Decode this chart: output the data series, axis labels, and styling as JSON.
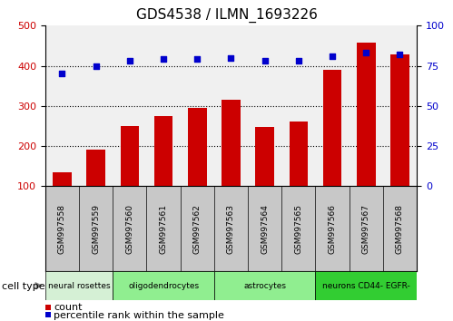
{
  "title": "GDS4538 / ILMN_1693226",
  "samples": [
    "GSM997558",
    "GSM997559",
    "GSM997560",
    "GSM997561",
    "GSM997562",
    "GSM997563",
    "GSM997564",
    "GSM997565",
    "GSM997566",
    "GSM997567",
    "GSM997568"
  ],
  "counts": [
    135,
    192,
    250,
    275,
    295,
    315,
    248,
    262,
    390,
    458,
    428
  ],
  "percentiles": [
    70,
    75,
    78,
    79,
    79,
    80,
    78,
    78,
    81,
    83,
    82
  ],
  "cell_types": [
    {
      "label": "neural rosettes",
      "start": 0,
      "end": 1,
      "color": "#d5f0d5"
    },
    {
      "label": "oligodendrocytes",
      "start": 2,
      "end": 4,
      "color": "#90ee90"
    },
    {
      "label": "astrocytes",
      "start": 5,
      "end": 7,
      "color": "#90ee90"
    },
    {
      "label": "neurons CD44- EGFR-",
      "start": 8,
      "end": 10,
      "color": "#32cd32"
    }
  ],
  "bar_color": "#cc0000",
  "dot_color": "#0000cc",
  "ylim_left": [
    100,
    500
  ],
  "ylim_right": [
    0,
    100
  ],
  "yticks_left": [
    100,
    200,
    300,
    400,
    500
  ],
  "yticks_right": [
    0,
    25,
    50,
    75,
    100
  ],
  "grid_values": [
    200,
    300,
    400
  ],
  "background_plot": "#f0f0f0",
  "background_fig": "#ffffff",
  "label_bg": "#c8c8c8"
}
